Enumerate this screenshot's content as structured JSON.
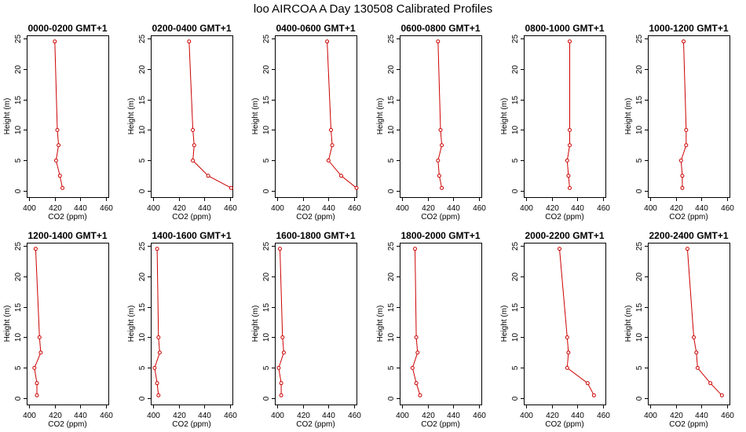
{
  "figure": {
    "title": "loo AIRCOA A  Day 130508  Calibrated Profiles"
  },
  "colors": {
    "series": "#cc0000",
    "axis": "#000000",
    "background": "#ffffff"
  },
  "chart_data": [
    {
      "type": "line",
      "title": "0000-0200 GMT+1",
      "xlabel": "CO2 (ppm)",
      "ylabel": "Height (m)",
      "xlim": [
        398,
        462
      ],
      "ylim": [
        -1,
        25.5
      ],
      "xticks": [
        400,
        420,
        440,
        460
      ],
      "yticks": [
        0,
        5,
        10,
        15,
        20,
        25
      ],
      "x": [
        426,
        424,
        421,
        423,
        422,
        420
      ],
      "y": [
        0.5,
        2.5,
        5,
        7.5,
        10,
        24.5
      ]
    },
    {
      "type": "line",
      "title": "0200-0400 GMT+1",
      "xlabel": "CO2 (ppm)",
      "ylabel": "Height (m)",
      "xlim": [
        398,
        462
      ],
      "ylim": [
        -1,
        25.5
      ],
      "xticks": [
        400,
        420,
        440,
        460
      ],
      "yticks": [
        0,
        5,
        10,
        15,
        20,
        25
      ],
      "x": [
        461,
        443,
        431,
        432,
        431,
        428
      ],
      "y": [
        0.5,
        2.5,
        5,
        7.5,
        10,
        24.5
      ]
    },
    {
      "type": "line",
      "title": "0400-0600 GMT+1",
      "xlabel": "CO2 (ppm)",
      "ylabel": "Height (m)",
      "xlim": [
        398,
        462
      ],
      "ylim": [
        -1,
        25.5
      ],
      "xticks": [
        400,
        420,
        440,
        460
      ],
      "yticks": [
        0,
        5,
        10,
        15,
        20,
        25
      ],
      "x": [
        462,
        450,
        440,
        443,
        442,
        439
      ],
      "y": [
        0.5,
        2.5,
        5,
        7.5,
        10,
        24.5
      ]
    },
    {
      "type": "line",
      "title": "0600-0800 GMT+1",
      "xlabel": "CO2 (ppm)",
      "ylabel": "Height (m)",
      "xlim": [
        398,
        462
      ],
      "ylim": [
        -1,
        25.5
      ],
      "xticks": [
        400,
        420,
        440,
        460
      ],
      "yticks": [
        0,
        5,
        10,
        15,
        20,
        25
      ],
      "x": [
        431,
        429,
        428,
        431,
        430,
        428
      ],
      "y": [
        0.5,
        2.5,
        5,
        7.5,
        10,
        24.5
      ]
    },
    {
      "type": "line",
      "title": "0800-1000 GMT+1",
      "xlabel": "CO2 (ppm)",
      "ylabel": "Height (m)",
      "xlim": [
        398,
        462
      ],
      "ylim": [
        -1,
        25.5
      ],
      "xticks": [
        400,
        420,
        440,
        460
      ],
      "yticks": [
        0,
        5,
        10,
        15,
        20,
        25
      ],
      "x": [
        434,
        433,
        432,
        434,
        434,
        434
      ],
      "y": [
        0.5,
        2.5,
        5,
        7.5,
        10,
        24.5
      ]
    },
    {
      "type": "line",
      "title": "1000-1200 GMT+1",
      "xlabel": "CO2 (ppm)",
      "ylabel": "Height (m)",
      "xlim": [
        398,
        462
      ],
      "ylim": [
        -1,
        25.5
      ],
      "xticks": [
        400,
        420,
        440,
        460
      ],
      "yticks": [
        0,
        5,
        10,
        15,
        20,
        25
      ],
      "x": [
        425,
        425,
        424,
        428,
        428,
        426
      ],
      "y": [
        0.5,
        2.5,
        5,
        7.5,
        10,
        24.5
      ]
    },
    {
      "type": "line",
      "title": "1200-1400 GMT+1",
      "xlabel": "CO2 (ppm)",
      "ylabel": "Height (m)",
      "xlim": [
        398,
        462
      ],
      "ylim": [
        -1,
        25.5
      ],
      "xticks": [
        400,
        420,
        440,
        460
      ],
      "yticks": [
        0,
        5,
        10,
        15,
        20,
        25
      ],
      "x": [
        406,
        406,
        404,
        409,
        408,
        405
      ],
      "y": [
        0.5,
        2.5,
        5,
        7.5,
        10,
        24.5
      ]
    },
    {
      "type": "line",
      "title": "1400-1600 GMT+1",
      "xlabel": "CO2 (ppm)",
      "ylabel": "Height (m)",
      "xlim": [
        398,
        462
      ],
      "ylim": [
        -1,
        25.5
      ],
      "xticks": [
        400,
        420,
        440,
        460
      ],
      "yticks": [
        0,
        5,
        10,
        15,
        20,
        25
      ],
      "x": [
        404,
        403,
        401,
        405,
        404,
        403
      ],
      "y": [
        0.5,
        2.5,
        5,
        7.5,
        10,
        24.5
      ]
    },
    {
      "type": "line",
      "title": "1600-1800 GMT+1",
      "xlabel": "CO2 (ppm)",
      "ylabel": "Height (m)",
      "xlim": [
        398,
        462
      ],
      "ylim": [
        -1,
        25.5
      ],
      "xticks": [
        400,
        420,
        440,
        460
      ],
      "yticks": [
        0,
        5,
        10,
        15,
        20,
        25
      ],
      "x": [
        403,
        403,
        401,
        405,
        404,
        402
      ],
      "y": [
        0.5,
        2.5,
        5,
        7.5,
        10,
        24.5
      ]
    },
    {
      "type": "line",
      "title": "1800-2000 GMT+1",
      "xlabel": "CO2 (ppm)",
      "ylabel": "Height (m)",
      "xlim": [
        398,
        462
      ],
      "ylim": [
        -1,
        25.5
      ],
      "xticks": [
        400,
        420,
        440,
        460
      ],
      "yticks": [
        0,
        5,
        10,
        15,
        20,
        25
      ],
      "x": [
        414,
        411,
        408,
        412,
        411,
        410
      ],
      "y": [
        0.5,
        2.5,
        5,
        7.5,
        10,
        24.5
      ]
    },
    {
      "type": "line",
      "title": "2000-2200 GMT+1",
      "xlabel": "CO2 (ppm)",
      "ylabel": "Height (m)",
      "xlim": [
        398,
        462
      ],
      "ylim": [
        -1,
        25.5
      ],
      "xticks": [
        400,
        420,
        440,
        460
      ],
      "yticks": [
        0,
        5,
        10,
        15,
        20,
        25
      ],
      "x": [
        453,
        448,
        432,
        433,
        432,
        426
      ],
      "y": [
        0.5,
        2.5,
        5,
        7.5,
        10,
        24.5
      ]
    },
    {
      "type": "line",
      "title": "2200-2400 GMT+1",
      "xlabel": "CO2 (ppm)",
      "ylabel": "Height (m)",
      "xlim": [
        398,
        462
      ],
      "ylim": [
        -1,
        25.5
      ],
      "xticks": [
        400,
        420,
        440,
        460
      ],
      "yticks": [
        0,
        5,
        10,
        15,
        20,
        25
      ],
      "x": [
        456,
        447,
        437,
        436,
        434,
        429
      ],
      "y": [
        0.5,
        2.5,
        5,
        7.5,
        10,
        24.5
      ]
    }
  ]
}
